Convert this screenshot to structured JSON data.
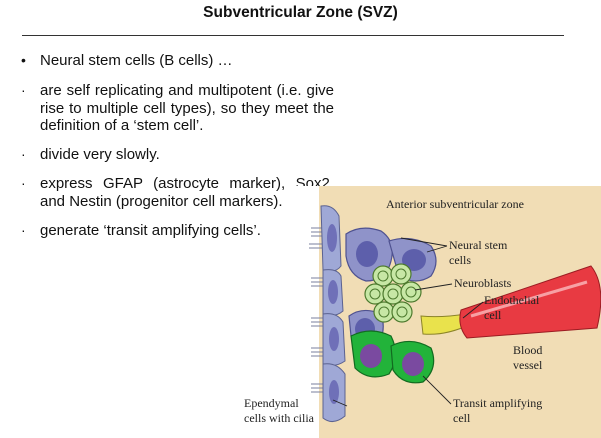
{
  "slide": {
    "title": "Subventricular Zone (SVZ)",
    "bullets": [
      {
        "marker": "•",
        "text": "Neural stem cells (B cells) …"
      },
      {
        "marker": "·",
        "text": "are self replicating and multipotent (i.e. give rise to multiple cell types), so they meet the definition of a ‘stem cell’."
      },
      {
        "marker": "·",
        "text": "divide very slowly."
      },
      {
        "marker": "·",
        "text": "express GFAP (astrocyte marker), Sox2, and Nestin (progenitor cell markers)."
      },
      {
        "marker": "·",
        "text": "generate ‘transit amplifying cells’."
      }
    ]
  },
  "figure": {
    "title": "Anterior subventricular zone",
    "labels": {
      "neural_stem_1": "Neural stem",
      "neural_stem_2": "cells",
      "neuroblasts": "Neuroblasts",
      "endothelial_1": "Endothelial",
      "endothelial_2": "cell",
      "blood_1": "Blood",
      "blood_2": "vessel",
      "ependymal_1": "Ependymal",
      "ependymal_2": "cells with cilia",
      "transit_1": "Transit amplifying",
      "transit_2": "cell"
    },
    "colors": {
      "background": "#f1ddb5",
      "ependymal": "#9fa8d6",
      "stem_cell": "#6f70b8",
      "neuroblast": "#c7e7a5",
      "transit": "#22b33a",
      "vessel": "#e83a42",
      "endothelial": "#e9e24c"
    }
  }
}
